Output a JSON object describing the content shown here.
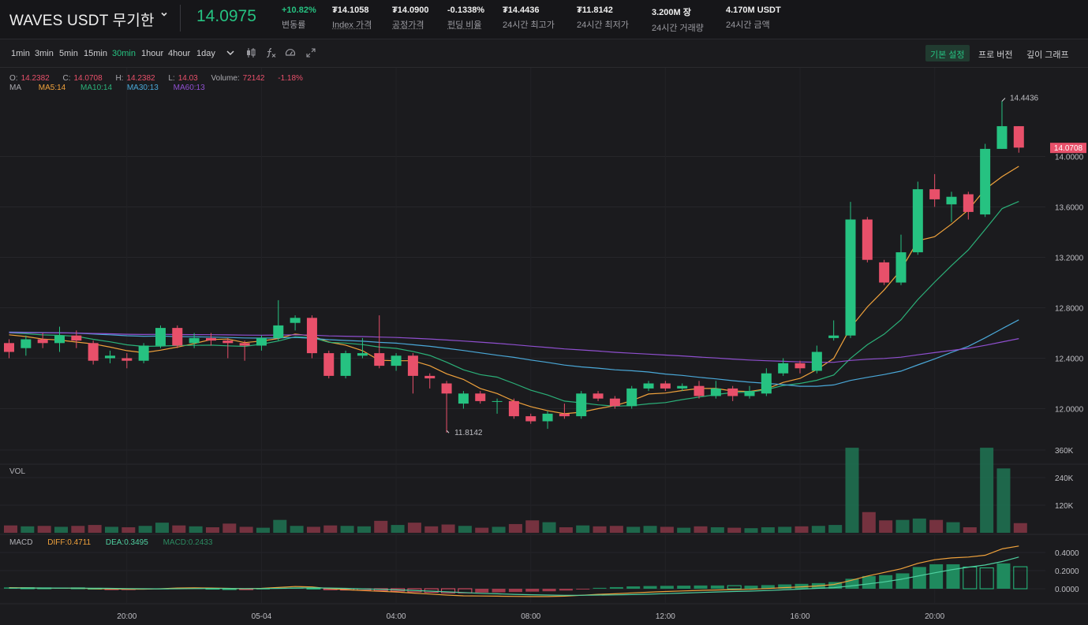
{
  "header": {
    "symbol": "WAVES USDT 무기한",
    "last_price": "14.0975",
    "stats": [
      {
        "value": "+10.82%",
        "label": "변동률",
        "up": true
      },
      {
        "value": "₮14.1058",
        "label": "Index 가격",
        "underline": true
      },
      {
        "value": "₮14.0900",
        "label": "공정가격",
        "underline": true
      },
      {
        "value": "-0.1338%",
        "label": "펀딩 비율",
        "underline": true
      },
      {
        "value": "₮14.4436",
        "label": "24시간 최고가"
      },
      {
        "value": "₮11.8142",
        "label": "24시간 최저가"
      },
      {
        "value": "3.200M 장",
        "label": "24시간 거래량"
      },
      {
        "value": "4.170M USDT",
        "label": "24시간 금액"
      }
    ]
  },
  "toolbar": {
    "timeframes": [
      "1min",
      "3min",
      "5min",
      "15min",
      "30min",
      "1hour",
      "4hour",
      "1day"
    ],
    "active_timeframe": "30min",
    "icons": [
      "chevron-down-icon",
      "candle-type-icon",
      "indicator-fx-icon",
      "settings-dial-icon",
      "fullscreen-icon"
    ],
    "views": [
      "기본 설정",
      "프로 버전",
      "깊이 그래프"
    ],
    "active_view": "기본 설정"
  },
  "info": {
    "o_label": "O:",
    "o": "14.2382",
    "c_label": "C:",
    "c": "14.0708",
    "h_label": "H:",
    "h": "14.2382",
    "l_label": "L:",
    "l": "14.03",
    "volume_label": "Volume:",
    "volume": "72142",
    "change": "-1.18%",
    "ma_label": "MA",
    "ma5": "MA5:14",
    "ma10": "MA10:14",
    "ma30": "MA30:13",
    "ma60": "MA60:13"
  },
  "vol_label": "VOL",
  "macd": {
    "label": "MACD",
    "diff": "DIFF:0.4711",
    "dea": "DEA:0.3495",
    "macd": "MACD:0.2433"
  },
  "colors": {
    "up": "#26c281",
    "down": "#e8506a",
    "ma5": "#f0a23c",
    "ma10": "#2bb179",
    "ma30": "#4aa8d8",
    "ma60": "#8f4fcf",
    "bg": "#1b1b1e"
  },
  "chart_data": {
    "type": "candlestick",
    "price_ticks": [
      "14.0000",
      "13.6000",
      "13.2000",
      "12.8000",
      "12.4000",
      "12.0000"
    ],
    "price_tick_values": [
      14.0,
      13.6,
      13.2,
      12.8,
      12.4,
      12.0
    ],
    "volume_ticks": [
      "360K",
      "240K",
      "120K"
    ],
    "volume_tick_values": [
      360000,
      240000,
      120000
    ],
    "macd_ticks": [
      "0.4000",
      "0.2000",
      "0.0000"
    ],
    "macd_tick_values": [
      0.4,
      0.2,
      0.0
    ],
    "x_labels": [
      {
        "label": "20:00",
        "index": 7
      },
      {
        "label": "05-04",
        "index": 15
      },
      {
        "label": "04:00",
        "index": 23
      },
      {
        "label": "08:00",
        "index": 31
      },
      {
        "label": "12:00",
        "index": 39
      },
      {
        "label": "16:00",
        "index": 47
      },
      {
        "label": "20:00",
        "index": 55
      }
    ],
    "high_marker": "14.4436",
    "low_marker": "11.8142",
    "current_price_tag": "14.0708",
    "high_value": 14.4436,
    "low_value": 11.8142,
    "current_value": 14.0708,
    "high_index": 59,
    "low_index": 26,
    "candles": [
      [
        12.52,
        12.45,
        12.55,
        12.4
      ],
      [
        12.48,
        12.55,
        12.58,
        12.42
      ],
      [
        12.55,
        12.52,
        12.6,
        12.48
      ],
      [
        12.52,
        12.58,
        12.65,
        12.45
      ],
      [
        12.58,
        12.54,
        12.62,
        12.48
      ],
      [
        12.52,
        12.38,
        12.54,
        12.35
      ],
      [
        12.4,
        12.42,
        12.46,
        12.36
      ],
      [
        12.4,
        12.38,
        12.44,
        12.32
      ],
      [
        12.38,
        12.5,
        12.52,
        12.36
      ],
      [
        12.5,
        12.64,
        12.66,
        12.48
      ],
      [
        12.64,
        12.5,
        12.66,
        12.48
      ],
      [
        12.52,
        12.56,
        12.6,
        12.48
      ],
      [
        12.56,
        12.54,
        12.6,
        12.5
      ],
      [
        12.54,
        12.52,
        12.56,
        12.4
      ],
      [
        12.52,
        12.5,
        12.54,
        12.38
      ],
      [
        12.5,
        12.56,
        12.58,
        12.46
      ],
      [
        12.56,
        12.66,
        12.86,
        12.54
      ],
      [
        12.68,
        12.72,
        12.74,
        12.62
      ],
      [
        12.72,
        12.44,
        12.74,
        12.4
      ],
      [
        12.44,
        12.26,
        12.46,
        12.24
      ],
      [
        12.26,
        12.44,
        12.46,
        12.24
      ],
      [
        12.42,
        12.44,
        12.56,
        12.4
      ],
      [
        12.44,
        12.34,
        12.74,
        12.32
      ],
      [
        12.34,
        12.42,
        12.44,
        12.3
      ],
      [
        12.42,
        12.26,
        12.44,
        12.12
      ],
      [
        12.26,
        12.24,
        12.28,
        12.16
      ],
      [
        12.2,
        12.12,
        12.22,
        11.81
      ],
      [
        12.04,
        12.12,
        12.14,
        12.0
      ],
      [
        12.12,
        12.06,
        12.14,
        12.04
      ],
      [
        12.06,
        12.06,
        12.08,
        11.96
      ],
      [
        12.06,
        11.94,
        12.08,
        11.92
      ],
      [
        11.94,
        11.9,
        11.96,
        11.88
      ],
      [
        11.9,
        11.96,
        11.98,
        11.84
      ],
      [
        11.96,
        11.94,
        12.04,
        11.92
      ],
      [
        11.94,
        12.12,
        12.14,
        11.92
      ],
      [
        12.12,
        12.08,
        12.14,
        12.06
      ],
      [
        12.08,
        12.02,
        12.1,
        12.0
      ],
      [
        12.02,
        12.16,
        12.18,
        12.0
      ],
      [
        12.16,
        12.2,
        12.22,
        12.14
      ],
      [
        12.2,
        12.16,
        12.22,
        12.14
      ],
      [
        12.16,
        12.18,
        12.2,
        12.14
      ],
      [
        12.18,
        12.1,
        12.22,
        12.08
      ],
      [
        12.1,
        12.16,
        12.22,
        12.08
      ],
      [
        12.16,
        12.1,
        12.18,
        12.06
      ],
      [
        12.1,
        12.14,
        12.18,
        12.08
      ],
      [
        12.12,
        12.28,
        12.32,
        12.1
      ],
      [
        12.28,
        12.36,
        12.4,
        12.26
      ],
      [
        12.36,
        12.32,
        12.38,
        12.28
      ],
      [
        12.3,
        12.45,
        12.5,
        12.28
      ],
      [
        12.56,
        12.58,
        12.7,
        12.54
      ],
      [
        12.58,
        13.5,
        13.64,
        12.56
      ],
      [
        13.5,
        13.18,
        13.52,
        13.16
      ],
      [
        13.16,
        13.0,
        13.18,
        12.98
      ],
      [
        13.0,
        13.24,
        13.38,
        12.98
      ],
      [
        13.24,
        13.74,
        13.8,
        13.22
      ],
      [
        13.74,
        13.66,
        13.86,
        13.6
      ],
      [
        13.62,
        13.68,
        13.72,
        13.48
      ],
      [
        13.7,
        13.56,
        13.72,
        13.5
      ],
      [
        13.54,
        14.06,
        14.1,
        13.52
      ],
      [
        14.06,
        14.24,
        14.44,
        14.06
      ],
      [
        14.24,
        14.07,
        14.24,
        14.03
      ]
    ],
    "volumes": [
      32000,
      28000,
      30000,
      26000,
      30000,
      34000,
      26000,
      24000,
      30000,
      44000,
      32000,
      28000,
      24000,
      40000,
      26000,
      22000,
      56000,
      30000,
      26000,
      32000,
      30000,
      28000,
      52000,
      34000,
      44000,
      28000,
      36000,
      30000,
      22000,
      26000,
      38000,
      54000,
      46000,
      24000,
      32000,
      28000,
      30000,
      26000,
      30000,
      26000,
      22000,
      28000,
      24000,
      22000,
      20000,
      24000,
      26000,
      28000,
      30000,
      34000,
      370000,
      90000,
      54000,
      56000,
      62000,
      56000,
      46000,
      24000,
      370000,
      280000,
      42000
    ],
    "macd": [
      0.015,
      0.012,
      0.01,
      0.012,
      0.01,
      0.004,
      -0.004,
      -0.008,
      -0.006,
      0.002,
      0.006,
      0.006,
      0.004,
      0.0,
      -0.002,
      0.0,
      0.008,
      0.014,
      0.006,
      -0.01,
      -0.014,
      -0.016,
      -0.02,
      -0.026,
      -0.034,
      -0.04,
      -0.046,
      -0.046,
      -0.042,
      -0.04,
      -0.036,
      -0.032,
      -0.028,
      -0.02,
      -0.006,
      0.01,
      0.018,
      0.026,
      0.03,
      0.032,
      0.034,
      0.036,
      0.036,
      0.034,
      0.034,
      0.04,
      0.048,
      0.054,
      0.062,
      0.074,
      0.11,
      0.14,
      0.15,
      0.17,
      0.24,
      0.27,
      0.27,
      0.24,
      0.23,
      0.28,
      0.243
    ],
    "diff": [
      0.012,
      0.01,
      0.008,
      0.008,
      0.006,
      0.002,
      -0.002,
      -0.004,
      -0.004,
      0.0,
      0.008,
      0.01,
      0.008,
      0.004,
      0.0,
      0.004,
      0.014,
      0.024,
      0.02,
      0.002,
      -0.01,
      -0.02,
      -0.028,
      -0.036,
      -0.048,
      -0.058,
      -0.07,
      -0.078,
      -0.08,
      -0.082,
      -0.084,
      -0.086,
      -0.086,
      -0.082,
      -0.072,
      -0.062,
      -0.056,
      -0.046,
      -0.038,
      -0.03,
      -0.024,
      -0.018,
      -0.014,
      -0.01,
      -0.006,
      0.002,
      0.012,
      0.02,
      0.03,
      0.046,
      0.09,
      0.14,
      0.18,
      0.22,
      0.28,
      0.32,
      0.34,
      0.35,
      0.37,
      0.44,
      0.471
    ],
    "dea": [
      0.008,
      0.008,
      0.008,
      0.008,
      0.007,
      0.006,
      0.004,
      0.002,
      0.0,
      -0.001,
      0.0,
      0.002,
      0.003,
      0.003,
      0.002,
      0.002,
      0.004,
      0.008,
      0.01,
      0.008,
      0.004,
      -0.001,
      -0.006,
      -0.012,
      -0.018,
      -0.026,
      -0.034,
      -0.042,
      -0.05,
      -0.056,
      -0.062,
      -0.066,
      -0.07,
      -0.072,
      -0.072,
      -0.07,
      -0.068,
      -0.064,
      -0.06,
      -0.054,
      -0.048,
      -0.042,
      -0.036,
      -0.03,
      -0.026,
      -0.02,
      -0.012,
      -0.004,
      0.004,
      0.012,
      0.03,
      0.052,
      0.076,
      0.104,
      0.14,
      0.176,
      0.21,
      0.238,
      0.262,
      0.3,
      0.3495
    ]
  }
}
